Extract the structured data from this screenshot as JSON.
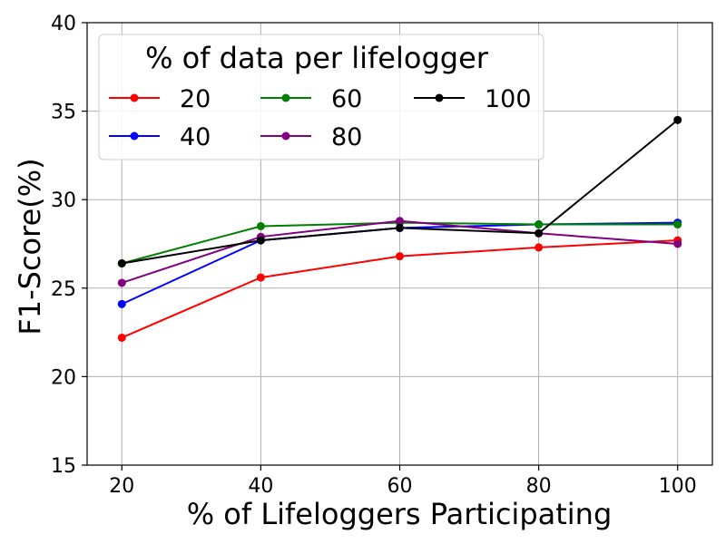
{
  "chart_data": {
    "type": "line",
    "xlabel": "% of Lifeloggers Participating",
    "ylabel": "F1-Score(%)",
    "x": [
      20,
      40,
      60,
      80,
      100
    ],
    "xticks": [
      20,
      40,
      60,
      80,
      100
    ],
    "yticks": [
      15,
      20,
      25,
      30,
      35,
      40
    ],
    "xlim": [
      15,
      105
    ],
    "ylim": [
      15,
      40
    ],
    "grid": true,
    "legend": {
      "title": "% of data per lifelogger",
      "placement": "top-left",
      "columns": 3
    },
    "series": [
      {
        "name": "20",
        "color": "#ff0000",
        "values": [
          22.2,
          25.6,
          26.8,
          27.3,
          27.7
        ]
      },
      {
        "name": "40",
        "color": "#0000ff",
        "values": [
          24.1,
          27.7,
          28.4,
          28.6,
          28.7
        ]
      },
      {
        "name": "60",
        "color": "#008000",
        "values": [
          26.4,
          28.5,
          28.7,
          28.6,
          28.6
        ]
      },
      {
        "name": "80",
        "color": "#800080",
        "values": [
          25.3,
          27.9,
          28.8,
          28.1,
          27.5
        ]
      },
      {
        "name": "100",
        "color": "#000000",
        "values": [
          26.4,
          27.7,
          28.4,
          28.1,
          34.5
        ]
      }
    ]
  }
}
